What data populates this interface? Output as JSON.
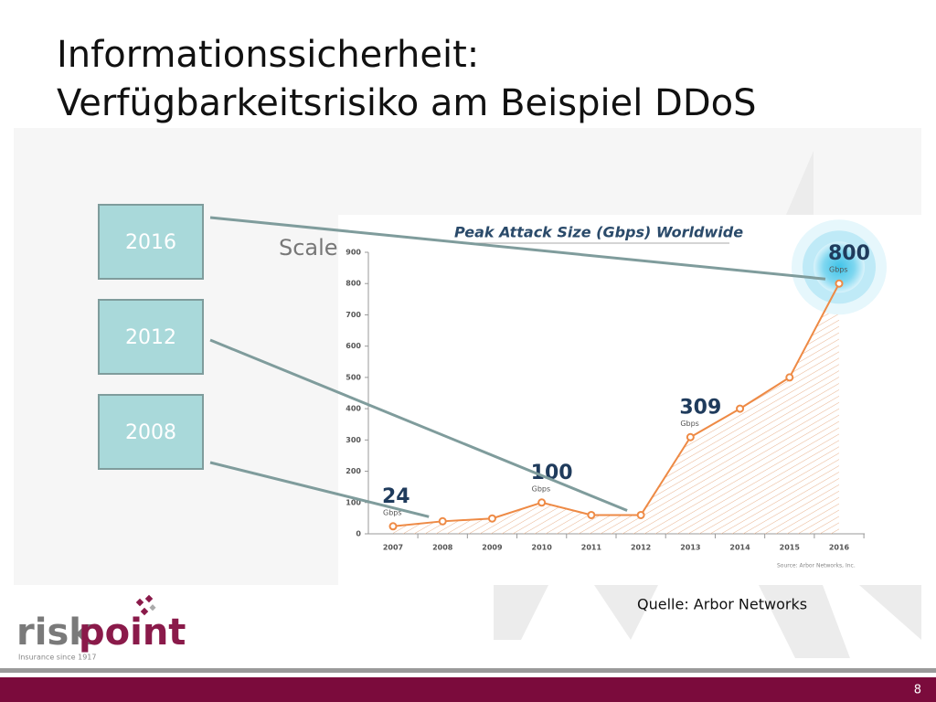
{
  "title_lines": [
    "Informationssicherheit:",
    "Verfügbarkeitsrisiko am Beispiel DDoS"
  ],
  "callouts": [
    "2016",
    "2012",
    "2008"
  ],
  "source": "Quelle: Arbor Networks",
  "page_number": "8",
  "logo": {
    "name_part1": "risk",
    "name_part2": "point",
    "tagline": "Insurance since 1917"
  },
  "chart_data": {
    "type": "line",
    "title": "Peak Attack Size (Gbps) Worldwide",
    "scale_label": "Scale",
    "categories": [
      "2007",
      "2008",
      "2009",
      "2010",
      "2011",
      "2012",
      "2013",
      "2014",
      "2015",
      "2016"
    ],
    "values": [
      24,
      40,
      49,
      100,
      60,
      60,
      309,
      400,
      500,
      800
    ],
    "value_labels": [
      "24",
      null,
      null,
      "100",
      null,
      null,
      "309",
      null,
      null,
      "800"
    ],
    "unit_label": "Gbps",
    "color": "#ee8a45",
    "ylim": [
      0,
      900
    ],
    "yticks": [
      0,
      100,
      200,
      300,
      400,
      500,
      600,
      700,
      800,
      900
    ],
    "source_note": "Source: Arbor Networks, Inc."
  }
}
